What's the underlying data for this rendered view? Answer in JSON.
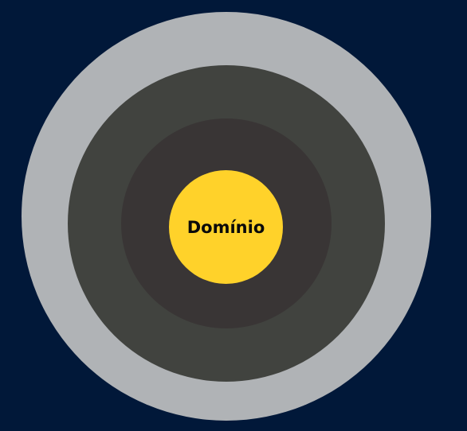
{
  "colors": {
    "background": "#011839",
    "outer_ring": "#B0B3B6",
    "middle_ring": "#41433F",
    "inner_ring": "#393535",
    "core": "#FFD22A",
    "core_text": "#0A0A0A"
  },
  "diagram": {
    "core_label": "Domínio"
  }
}
